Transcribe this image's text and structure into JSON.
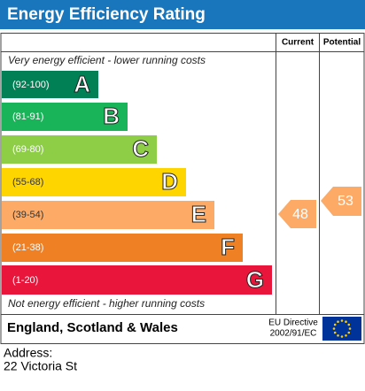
{
  "header": {
    "title": "Energy Efficiency Rating",
    "current": "Current",
    "potential": "Potential"
  },
  "top_note": "Very energy efficient - lower running costs",
  "bottom_note": "Not energy efficient - higher running costs",
  "bands": [
    {
      "range": "(92-100)",
      "letter": "A"
    },
    {
      "range": "(81-91)",
      "letter": "B"
    },
    {
      "range": "(69-80)",
      "letter": "C"
    },
    {
      "range": "(55-68)",
      "letter": "D"
    },
    {
      "range": "(39-54)",
      "letter": "E"
    },
    {
      "range": "(21-38)",
      "letter": "F"
    },
    {
      "range": "(1-20)",
      "letter": "G"
    }
  ],
  "ratings": {
    "current": 48,
    "potential": 53
  },
  "footer": {
    "region": "England, Scotland & Wales",
    "directive_line1": "EU Directive",
    "directive_line2": "2002/91/EC"
  },
  "address": {
    "label": "Address:",
    "line1": "22 Victoria St"
  }
}
